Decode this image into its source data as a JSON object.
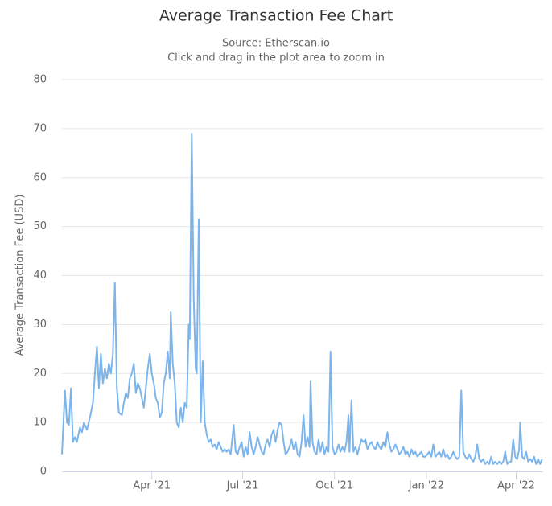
{
  "chart_data": {
    "type": "line",
    "title": "Average Transaction Fee Chart",
    "subtitle": [
      "Source: Etherscan.io",
      "Click and drag in the plot area to zoom in"
    ],
    "y_label": "Average Transaction Fee (USD)",
    "xlim": [
      0,
      482
    ],
    "xticks": [
      {
        "value": 90,
        "label": "Apr '21"
      },
      {
        "value": 181,
        "label": "Jul '21"
      },
      {
        "value": 273,
        "label": "Oct '21"
      },
      {
        "value": 365,
        "label": "Jan '22"
      },
      {
        "value": 455,
        "label": "Apr '22"
      }
    ],
    "ylim": [
      0,
      80
    ],
    "yticks": [
      0,
      10,
      20,
      30,
      40,
      50,
      60,
      70,
      80
    ],
    "grid": true,
    "series": [
      {
        "color": "#7cb5ec",
        "x": [
          0,
          3,
          5,
          7,
          9,
          11,
          13,
          15,
          18,
          20,
          22,
          25,
          28,
          31,
          33,
          35,
          37,
          39,
          41,
          43,
          45,
          47,
          49,
          51,
          53,
          55,
          57,
          60,
          62,
          64,
          66,
          68,
          70,
          72,
          74,
          76,
          78,
          80,
          82,
          84,
          86,
          88,
          90,
          92,
          94,
          96,
          98,
          100,
          102,
          104,
          106,
          108,
          109,
          111,
          113,
          115,
          117,
          119,
          121,
          123,
          125,
          127,
          128,
          130,
          132,
          134,
          135,
          137,
          139,
          141,
          143,
          145,
          147,
          149,
          151,
          153,
          155,
          157,
          159,
          161,
          163,
          165,
          167,
          169,
          172,
          174,
          176,
          178,
          180,
          182,
          184,
          186,
          188,
          190,
          192,
          194,
          196,
          198,
          200,
          202,
          204,
          206,
          208,
          210,
          212,
          214,
          216,
          218,
          220,
          222,
          224,
          226,
          228,
          230,
          232,
          234,
          236,
          238,
          240,
          242,
          244,
          246,
          248,
          249,
          251,
          253,
          255,
          257,
          259,
          261,
          263,
          265,
          267,
          269,
          271,
          273,
          275,
          277,
          279,
          281,
          283,
          285,
          287,
          288,
          290,
          292,
          294,
          296,
          298,
          300,
          302,
          304,
          306,
          308,
          310,
          312,
          314,
          316,
          318,
          320,
          322,
          324,
          326,
          328,
          330,
          332,
          334,
          336,
          338,
          340,
          342,
          344,
          346,
          348,
          350,
          352,
          354,
          356,
          358,
          360,
          362,
          364,
          366,
          368,
          370,
          372,
          374,
          376,
          378,
          380,
          382,
          384,
          386,
          388,
          390,
          392,
          394,
          396,
          398,
          400,
          402,
          404,
          406,
          408,
          410,
          412,
          414,
          416,
          418,
          420,
          422,
          424,
          426,
          428,
          430,
          432,
          434,
          436,
          438,
          440,
          442,
          444,
          446,
          448,
          450,
          452,
          454,
          456,
          458,
          459,
          461,
          463,
          465,
          467,
          469,
          471,
          473,
          475,
          477,
          479,
          481
        ],
        "values": [
          3.5,
          16.5,
          10,
          9.5,
          17,
          6,
          7,
          6,
          9,
          8,
          10,
          8.5,
          11,
          14,
          20,
          25.5,
          17,
          24,
          18,
          21,
          19,
          22,
          20,
          24,
          38.5,
          17,
          12,
          11.5,
          14,
          16,
          15,
          19,
          20,
          22,
          16,
          18,
          17,
          15,
          13,
          17,
          21,
          24,
          20,
          18,
          15,
          14,
          11,
          12,
          18,
          20,
          24.5,
          19,
          32.5,
          22,
          18,
          10,
          9,
          13,
          10,
          14,
          13,
          30,
          27,
          69,
          35,
          21,
          20,
          51.5,
          10,
          22.5,
          10,
          7.5,
          6,
          6.5,
          5,
          5.5,
          4.5,
          6,
          5,
          4,
          4.5,
          4,
          4.5,
          3.5,
          9.5,
          4,
          3.5,
          5,
          6,
          3,
          5,
          3.5,
          8,
          5,
          3.5,
          5,
          7,
          5.5,
          4,
          3.5,
          5.5,
          6.5,
          5,
          7.5,
          8.5,
          6,
          8.5,
          10,
          9.5,
          6,
          3.5,
          4,
          5,
          6.5,
          4.5,
          6,
          3.5,
          3,
          6,
          11.5,
          5,
          7,
          5,
          18.5,
          6,
          4,
          3.5,
          6.5,
          4,
          6,
          3.5,
          5,
          4,
          24.5,
          5,
          3.5,
          4,
          5.5,
          4,
          5,
          4,
          6,
          11.5,
          4,
          14.5,
          4,
          5,
          3.5,
          5,
          6.5,
          6,
          6.5,
          4.5,
          5.5,
          6,
          5,
          4.5,
          6,
          5,
          4.5,
          6,
          5,
          8,
          5.5,
          4,
          4.5,
          5.5,
          4.5,
          3.5,
          4,
          5,
          3.5,
          4,
          3,
          4.5,
          3.5,
          4,
          3,
          3.5,
          4,
          3,
          3,
          3.5,
          4,
          3,
          5.5,
          3,
          3.5,
          4,
          3,
          4.5,
          3,
          3.5,
          2.5,
          3,
          4,
          3,
          2.5,
          3,
          16.5,
          4,
          3,
          2.5,
          3.5,
          2.5,
          2,
          3,
          5.5,
          2.5,
          2,
          2.5,
          1.5,
          2,
          1.5,
          3,
          1.5,
          2,
          1.5,
          2,
          1.5,
          2,
          4,
          1.5,
          2,
          2,
          6.5,
          3,
          2.5,
          4.5,
          10,
          3,
          2.5,
          4,
          2,
          2.5,
          2,
          3,
          1.5,
          2.5,
          1.5,
          2.5
        ]
      }
    ]
  }
}
